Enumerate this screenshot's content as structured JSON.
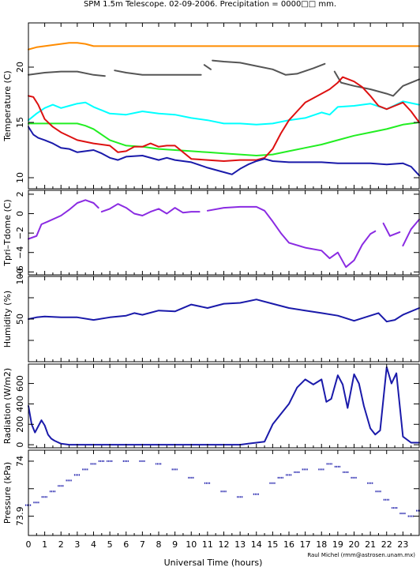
{
  "page": {
    "title": "SPM 1.5m Telescope. 02-09-2006. Precipitation = 0000□□ mm.",
    "xlabel": "Universal Time (hours)",
    "credit": "Raul Michel (rmm@astrosen.unam.mx)"
  },
  "chart_data": [
    {
      "type": "line",
      "ylabel": "Temperature (C)",
      "xlim": [
        0,
        24
      ],
      "ylim": [
        9,
        24
      ],
      "yticks": [
        10,
        15,
        20
      ],
      "grid": false,
      "series": [
        {
          "color": "#ff8c00",
          "x": [
            0,
            0.5,
            1,
            1.5,
            2,
            2.5,
            3,
            3.5,
            4,
            6,
            9,
            12,
            15,
            18,
            21,
            24
          ],
          "y": [
            21.6,
            21.8,
            21.9,
            22.0,
            22.1,
            22.2,
            22.2,
            22.1,
            21.9,
            21.9,
            21.9,
            21.9,
            21.9,
            21.9,
            21.9,
            21.9
          ]
        },
        {
          "color": "#555555",
          "x": [
            0,
            1,
            2,
            3,
            4,
            4.7
          ],
          "y": [
            19.3,
            19.5,
            19.6,
            19.6,
            19.3,
            19.2
          ]
        },
        {
          "color": "#555555",
          "x": [
            5.3,
            6,
            7,
            8,
            9,
            10,
            10.6
          ],
          "y": [
            19.7,
            19.5,
            19.3,
            19.3,
            19.3,
            19.3,
            19.3
          ]
        },
        {
          "color": "#555555",
          "x": [
            10.8,
            11.2
          ],
          "y": [
            20.2,
            19.8
          ]
        },
        {
          "color": "#555555",
          "x": [
            11.3,
            12,
            13,
            14,
            15,
            15.8,
            16.5,
            17.5,
            18.2
          ],
          "y": [
            20.6,
            20.5,
            20.4,
            20.1,
            19.8,
            19.3,
            19.4,
            19.9,
            20.3
          ]
        },
        {
          "color": "#555555",
          "x": [
            18.8,
            19.2,
            20,
            21,
            22,
            22.4,
            23,
            24
          ],
          "y": [
            19.6,
            18.6,
            18.3,
            18.0,
            17.6,
            17.4,
            18.3,
            18.9
          ]
        },
        {
          "color": "#00ffff",
          "x": [
            0,
            0.5,
            1,
            1.5,
            2,
            2.5,
            3,
            3.5,
            4,
            4.5,
            5,
            6,
            7,
            8,
            9,
            10,
            11,
            12,
            13,
            14,
            15,
            16,
            17,
            18,
            18.5,
            19,
            20,
            21,
            22,
            23,
            24
          ],
          "y": [
            15.2,
            15.8,
            16.3,
            16.6,
            16.3,
            16.5,
            16.7,
            16.8,
            16.4,
            16.1,
            15.8,
            15.7,
            16.0,
            15.8,
            15.7,
            15.4,
            15.2,
            14.9,
            14.9,
            14.8,
            14.9,
            15.2,
            15.4,
            15.9,
            15.7,
            16.4,
            16.5,
            16.7,
            16.2,
            16.9,
            16.6
          ]
        },
        {
          "color": "#22ee22",
          "x": [
            0,
            1,
            2,
            3,
            3.5,
            4,
            4.5,
            5,
            6,
            7,
            8,
            9,
            10,
            11,
            12,
            13,
            14,
            15,
            16,
            17,
            18,
            19,
            20,
            21,
            22,
            23,
            24
          ],
          "y": [
            14.9,
            14.9,
            14.9,
            14.9,
            14.7,
            14.4,
            13.9,
            13.4,
            12.9,
            12.8,
            12.6,
            12.5,
            12.4,
            12.3,
            12.2,
            12.1,
            12.0,
            12.1,
            12.4,
            12.7,
            13.0,
            13.4,
            13.8,
            14.1,
            14.4,
            14.8,
            15.0
          ]
        },
        {
          "color": "#dd1111",
          "x": [
            0,
            0.3,
            0.6,
            1,
            1.5,
            2,
            3,
            4,
            5,
            5.5,
            6,
            6.5,
            7,
            7.5,
            8,
            8.5,
            9,
            10,
            11,
            12,
            13,
            14,
            14.5,
            15,
            15.5,
            16,
            16.5,
            17,
            18,
            18.5,
            19,
            19.3,
            20,
            20.5,
            21,
            21.5,
            22,
            22.5,
            23,
            23.5,
            24
          ],
          "y": [
            17.4,
            17.3,
            16.6,
            15.3,
            14.6,
            14.1,
            13.4,
            13.1,
            12.9,
            12.3,
            12.4,
            12.8,
            12.8,
            13.1,
            12.8,
            12.9,
            12.9,
            11.7,
            11.6,
            11.5,
            11.6,
            11.6,
            11.8,
            12.6,
            14.0,
            15.2,
            16.0,
            16.8,
            17.6,
            18.0,
            18.6,
            19.1,
            18.7,
            18.2,
            17.4,
            16.5,
            16.2,
            16.5,
            16.8,
            16.0,
            15.0
          ]
        },
        {
          "color": "#1a1aaa",
          "x": [
            0,
            0.3,
            0.6,
            1,
            1.5,
            2,
            2.5,
            3,
            3.5,
            4,
            4.5,
            5,
            5.5,
            6,
            7,
            8,
            8.5,
            9,
            10,
            11,
            12,
            12.5,
            13,
            13.5,
            14,
            14.5,
            15,
            16,
            17,
            18,
            19,
            20,
            21,
            22,
            23,
            23.5,
            24
          ],
          "y": [
            14.6,
            13.9,
            13.6,
            13.4,
            13.1,
            12.7,
            12.6,
            12.3,
            12.4,
            12.5,
            12.2,
            11.8,
            11.6,
            11.9,
            12.0,
            11.6,
            11.8,
            11.6,
            11.4,
            10.9,
            10.5,
            10.3,
            10.8,
            11.2,
            11.5,
            11.7,
            11.5,
            11.4,
            11.4,
            11.4,
            11.3,
            11.3,
            11.3,
            11.2,
            11.3,
            11.0,
            10.2
          ]
        }
      ]
    },
    {
      "type": "line",
      "ylabel": "Tpri–Tdome (C)",
      "xlim": [
        0,
        24
      ],
      "ylim": [
        -6.3,
        2.4
      ],
      "yticks": [
        2,
        0,
        -2,
        -4,
        -6
      ],
      "ytick_labels": [
        "2",
        "0",
        "−2",
        "−4",
        "−6"
      ],
      "grid": false,
      "series": [
        {
          "color": "#8a2be2",
          "x": [
            0,
            0.5,
            0.8,
            1.2,
            2,
            2.5,
            3,
            3.5,
            4,
            4.3
          ],
          "y": [
            -2.6,
            -2.3,
            -1.1,
            -0.8,
            -0.2,
            0.4,
            1.1,
            1.4,
            1.1,
            0.6
          ]
        },
        {
          "color": "#8a2be2",
          "x": [
            4.5,
            5,
            5.5,
            6,
            6.5,
            7,
            7.5,
            8,
            8.5,
            9,
            9.5,
            10,
            10.5
          ],
          "y": [
            0.2,
            0.5,
            1.0,
            0.6,
            0.0,
            -0.2,
            0.2,
            0.5,
            0.0,
            0.6,
            0.1,
            0.2,
            0.2
          ]
        },
        {
          "color": "#8a2be2",
          "x": [
            11,
            12,
            13,
            14,
            14.5,
            15,
            15.5,
            16,
            17,
            18,
            18.5,
            19,
            19.5,
            20,
            20.5,
            21,
            21.3
          ],
          "y": [
            0.3,
            0.6,
            0.7,
            0.7,
            0.3,
            -0.8,
            -2.0,
            -3.0,
            -3.5,
            -3.8,
            -4.6,
            -4.0,
            -5.5,
            -4.8,
            -3.2,
            -2.1,
            -1.8
          ]
        },
        {
          "color": "#8a2be2",
          "x": [
            21.8,
            22.2,
            22.8
          ],
          "y": [
            -1.0,
            -2.3,
            -1.9
          ]
        },
        {
          "color": "#8a2be2",
          "x": [
            23,
            23.5,
            24
          ],
          "y": [
            -3.3,
            -1.6,
            -0.6
          ]
        }
      ]
    },
    {
      "type": "line",
      "ylabel": "Humidity (%)",
      "xlim": [
        0,
        24
      ],
      "ylim": [
        0,
        100
      ],
      "yticks": [
        0,
        25,
        50,
        75,
        100
      ],
      "ytick_labels": [
        "",
        "",
        "50",
        "",
        "100"
      ],
      "grid": false,
      "series": [
        {
          "color": "#1a1aaa",
          "x": [
            0,
            0.5,
            1,
            2,
            3,
            4,
            5,
            6,
            6.5,
            7,
            8,
            9,
            10,
            11,
            12,
            13,
            14,
            15,
            16,
            17,
            18,
            19,
            20,
            21,
            21.5,
            22,
            22.5,
            23,
            24
          ],
          "y": [
            50,
            52,
            53,
            52,
            52,
            49,
            52,
            54,
            57,
            55,
            60,
            59,
            67,
            63,
            68,
            69,
            73,
            68,
            63,
            60,
            57,
            54,
            48,
            54,
            57,
            47,
            49,
            55,
            63
          ]
        }
      ]
    },
    {
      "type": "line",
      "ylabel": "Radiation (W/m2)",
      "xlim": [
        0,
        24
      ],
      "ylim": [
        -30,
        790
      ],
      "yticks": [
        0,
        200,
        400,
        600
      ],
      "grid": false,
      "series": [
        {
          "color": "#1a1aaa",
          "x": [
            0,
            0.2,
            0.4,
            0.6,
            0.8,
            1,
            1.2,
            1.4,
            1.6,
            2,
            2.5,
            3,
            4,
            6,
            8,
            10,
            12,
            13,
            13.5,
            14,
            14.5,
            15,
            15.5,
            16,
            16.5,
            17,
            17.5,
            18,
            18.3,
            18.6,
            19,
            19.3,
            19.6,
            20,
            20.3,
            20.6,
            21,
            21.3,
            21.6,
            22,
            22.3,
            22.6,
            23,
            23.5,
            24
          ],
          "y": [
            380,
            200,
            120,
            180,
            240,
            190,
            100,
            60,
            40,
            10,
            0,
            0,
            0,
            0,
            0,
            0,
            0,
            0,
            10,
            20,
            30,
            200,
            300,
            400,
            560,
            640,
            590,
            640,
            420,
            450,
            680,
            590,
            360,
            690,
            600,
            380,
            160,
            100,
            140,
            760,
            600,
            700,
            80,
            20,
            20
          ]
        }
      ]
    },
    {
      "type": "scatter",
      "ylabel": "Pressure (kPa)",
      "xlim": [
        0,
        24
      ],
      "ylim": [
        73.83,
        74.14
      ],
      "yticks": [
        73.9,
        74.0,
        74.1
      ],
      "ytick_labels": [
        "73.9",
        "",
        "74"
      ],
      "grid": false,
      "series": [
        {
          "color": "#1a1aaa",
          "x": [
            0,
            0.5,
            1,
            1.5,
            2,
            2.5,
            3,
            3.5,
            4,
            4.5,
            5,
            6,
            7,
            8,
            9,
            10,
            11,
            12,
            13,
            14,
            15,
            15.5,
            16,
            16.5,
            17,
            18,
            18.5,
            19,
            19.5,
            20,
            21,
            21.5,
            22,
            22.5,
            23,
            23.5,
            24
          ],
          "y": [
            73.94,
            73.95,
            73.97,
            73.99,
            74.01,
            74.03,
            74.05,
            74.07,
            74.09,
            74.1,
            74.1,
            74.1,
            74.1,
            74.09,
            74.07,
            74.04,
            74.02,
            73.99,
            73.97,
            73.98,
            74.02,
            74.04,
            74.05,
            74.06,
            74.07,
            74.07,
            74.09,
            74.08,
            74.06,
            74.04,
            74.02,
            73.99,
            73.96,
            73.93,
            73.91,
            73.9,
            73.92
          ]
        }
      ]
    }
  ],
  "xaxis": {
    "ticks": [
      0,
      1,
      2,
      3,
      4,
      5,
      6,
      7,
      8,
      9,
      10,
      11,
      12,
      13,
      14,
      15,
      16,
      17,
      18,
      19,
      20,
      21,
      22,
      23
    ]
  }
}
